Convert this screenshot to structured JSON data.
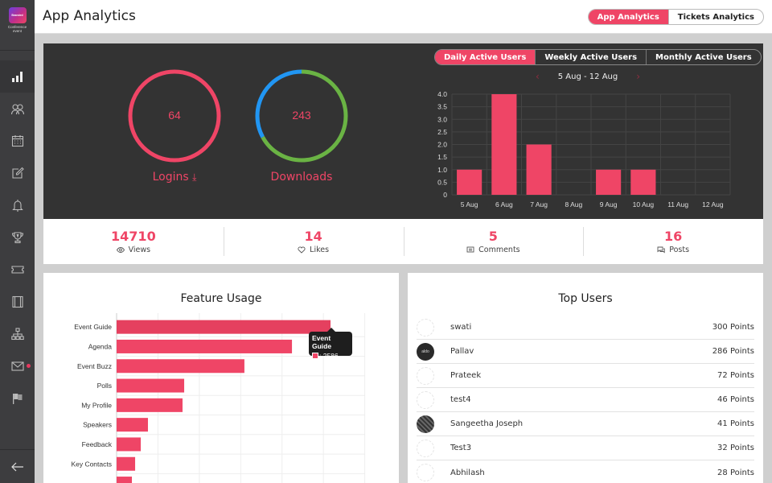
{
  "sidebar": {
    "logo_text": "Branded",
    "event_name_line1": "Conference",
    "event_name_line2": "event",
    "items": [
      {
        "icon": "bar-chart-icon",
        "active": true
      },
      {
        "icon": "users-icon"
      },
      {
        "icon": "calendar-icon"
      },
      {
        "icon": "edit-icon"
      },
      {
        "icon": "bell-icon"
      },
      {
        "icon": "trophy-icon"
      },
      {
        "icon": "ticket-icon"
      },
      {
        "icon": "film-icon"
      },
      {
        "icon": "sitemap-icon"
      },
      {
        "icon": "mail-icon",
        "badge": true
      },
      {
        "icon": "flag-icon"
      }
    ],
    "back_icon": "arrow-left-icon"
  },
  "header": {
    "title": "App Analytics",
    "tabs": [
      {
        "label": "App Analytics",
        "active": true
      },
      {
        "label": "Tickets Analytics",
        "active": false
      }
    ]
  },
  "summary": {
    "logins": {
      "value": "64",
      "label": "Logins",
      "icon": "download-arrow-icon",
      "color": "#ef4566"
    },
    "downloads": {
      "value": "243",
      "label": "Downloads",
      "segments": [
        {
          "name": "segment-a",
          "fraction": 0.67,
          "color": "#6ab344"
        },
        {
          "name": "segment-b",
          "fraction": 0.33,
          "color": "#2196f3"
        }
      ]
    }
  },
  "active_users": {
    "tabs": [
      {
        "label": "Daily Active Users",
        "active": true
      },
      {
        "label": "Weekly Active Users",
        "active": false
      },
      {
        "label": "Monthly Active Users",
        "active": false
      }
    ],
    "range": "5 Aug - 12 Aug",
    "prev_icon": "‹",
    "next_icon": "›"
  },
  "stats": [
    {
      "value": "14710",
      "label": "Views",
      "icon": "eye-icon"
    },
    {
      "value": "14",
      "label": "Likes",
      "icon": "heart-icon"
    },
    {
      "value": "5",
      "label": "Comments",
      "icon": "comment-icon"
    },
    {
      "value": "16",
      "label": "Posts",
      "icon": "posts-icon"
    }
  ],
  "feature_usage": {
    "title": "Feature Usage",
    "tooltip": {
      "title": "Event Guide",
      "value": ": 2586"
    }
  },
  "top_users": {
    "title": "Top Users",
    "users": [
      {
        "name": "swati",
        "points": "300 Points",
        "avatar": "blank"
      },
      {
        "name": "Pallav",
        "points": "286 Points",
        "avatar": "dark1",
        "avatar_text": "aldo"
      },
      {
        "name": "Prateek",
        "points": "72 Points",
        "avatar": "blank"
      },
      {
        "name": "test4",
        "points": "46 Points",
        "avatar": "blank"
      },
      {
        "name": "Sangeetha Joseph",
        "points": "41 Points",
        "avatar": "dark2"
      },
      {
        "name": "Test3",
        "points": "32 Points",
        "avatar": "blank"
      },
      {
        "name": "Abhilash",
        "points": "28 Points",
        "avatar": "blank"
      }
    ]
  },
  "chart_data": [
    {
      "type": "bar",
      "title": "Daily Active Users",
      "categories": [
        "5 Aug",
        "6 Aug",
        "7 Aug",
        "8 Aug",
        "9 Aug",
        "10 Aug",
        "11 Aug",
        "12 Aug"
      ],
      "values": [
        1,
        4,
        2,
        0,
        1,
        1,
        0,
        0
      ],
      "ylim": [
        0,
        4
      ],
      "yticks": [
        "0",
        "0.5",
        "1.0",
        "1.5",
        "2.0",
        "2.5",
        "3.0",
        "3.5",
        "4.0"
      ],
      "color": "#ef4566",
      "grid": true
    },
    {
      "type": "bar",
      "orientation": "horizontal",
      "title": "Feature Usage",
      "categories": [
        "Event Guide",
        "Agenda",
        "Event Buzz",
        "Polls",
        "My Profile",
        "Speakers",
        "Feedback",
        "Key Contacts",
        ""
      ],
      "values": [
        2586,
        2120,
        1545,
        817,
        797,
        379,
        292,
        224,
        185
      ],
      "xlim": [
        0,
        3000
      ],
      "color": "#ef4566",
      "grid": true
    }
  ]
}
